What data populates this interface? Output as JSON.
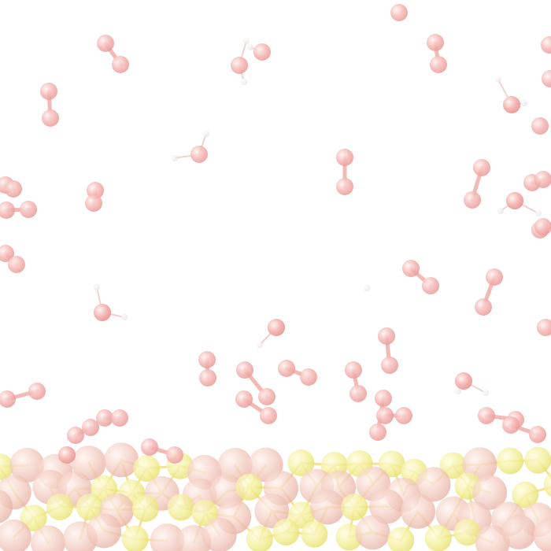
{
  "image": {
    "subject": "molecular-dynamics-render",
    "elements": [
      {
        "name": "oxygen-molecule",
        "color": "#f0a8a8"
      },
      {
        "name": "water-molecule",
        "color": "#f0a8a8"
      },
      {
        "name": "hydrogen-atom",
        "color": "#f4f4f4"
      },
      {
        "name": "sulfur-atom",
        "color": "#f0ec8c"
      },
      {
        "name": "metal-atom",
        "color": "#f2c6b8"
      },
      {
        "name": "bond",
        "color": "#f4cfa0"
      }
    ],
    "background": "#ffffff",
    "opacity": "faded"
  }
}
